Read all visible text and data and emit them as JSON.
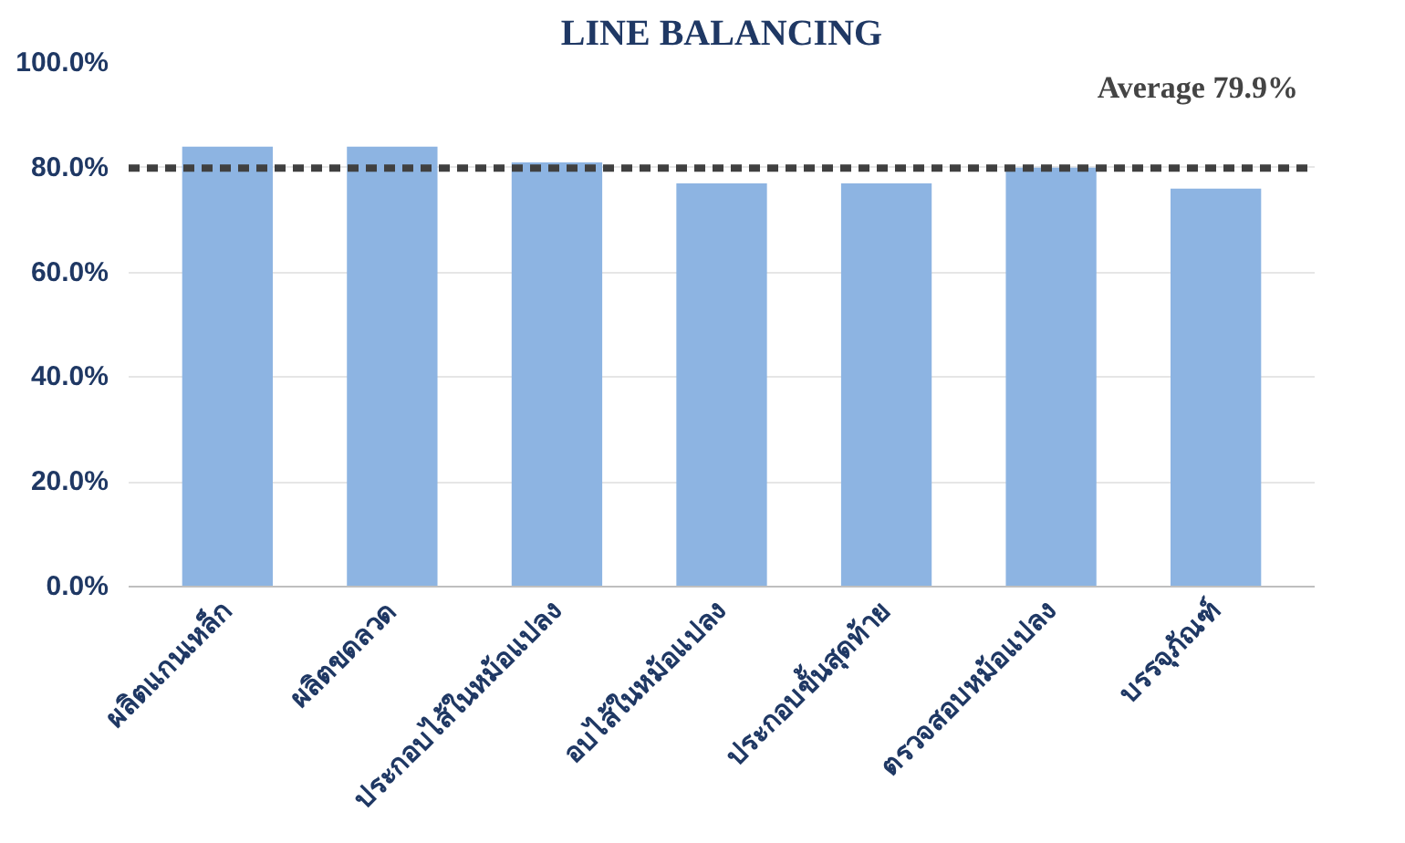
{
  "chart_data": {
    "type": "bar",
    "title": "LINE BALANCING",
    "categories": [
      "ผลิตแกนเหล็ก",
      "ผลิตขดลวด",
      "ประกอบไส้ในหม้อแปลง",
      "อบไส้ในหม้อแปลง",
      "ประกอบขั้นสุดท้าย",
      "ตรวจสอบหม้อแปลง",
      "บรรจุภัณฑ์"
    ],
    "values": [
      84,
      84,
      81,
      77,
      77,
      80,
      76
    ],
    "color": "#8db4e2",
    "ylim": [
      0,
      100
    ],
    "yticks": [
      {
        "value": 0,
        "label": "0.0%"
      },
      {
        "value": 20,
        "label": "20.0%"
      },
      {
        "value": 40,
        "label": "40.0%"
      },
      {
        "value": 60,
        "label": "60.0%"
      },
      {
        "value": 80,
        "label": "80.0%"
      },
      {
        "value": 100,
        "label": "100.0%"
      }
    ],
    "grid": "y",
    "ref_lines": [
      {
        "axis": "y",
        "value": 79.9,
        "label": "Average 79.9%",
        "color": "#404040",
        "line_style": "dashed"
      }
    ]
  }
}
